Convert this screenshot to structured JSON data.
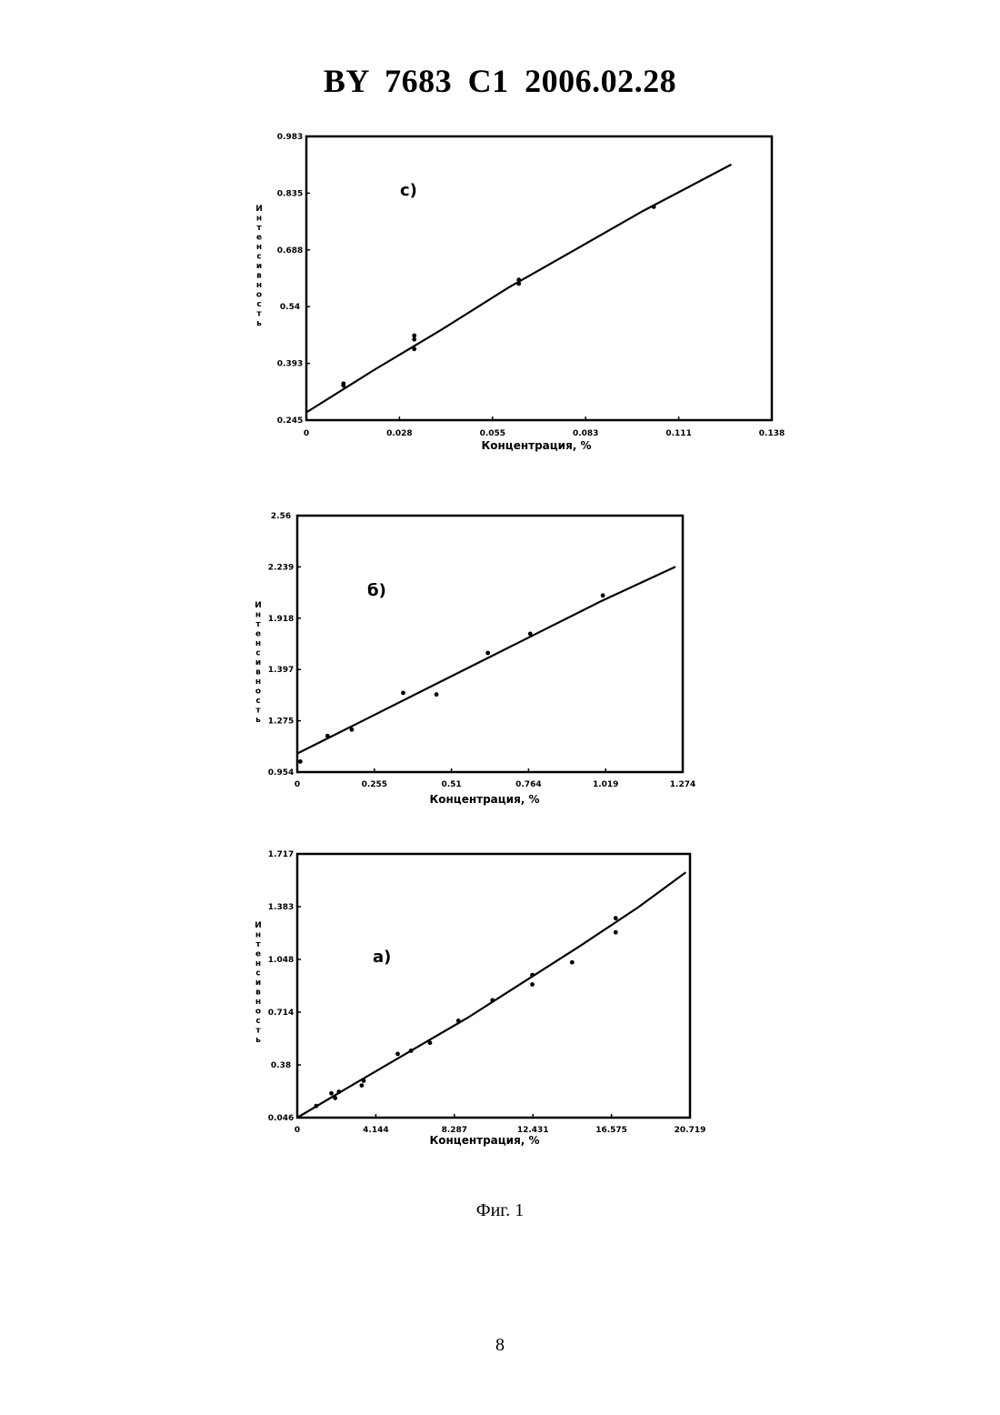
{
  "header": {
    "title": "BY 7683 C1 2006.02.28"
  },
  "caption": "Фиг. 1",
  "page_number": "8",
  "chart_data": [
    {
      "type": "scatter",
      "panel_label": "с)",
      "xlabel": "Концентрация, %",
      "ylabel": "Интенсивность",
      "x_ticks": [
        "0",
        "0.028",
        "0.055",
        "0.083",
        "0.111",
        "0.138"
      ],
      "y_ticks": [
        "0.245",
        "0.393",
        "0.54",
        "0.688",
        "0.835",
        "0.983"
      ],
      "xlim": [
        0,
        0.138
      ],
      "ylim": [
        0.245,
        0.983
      ],
      "points": [
        [
          0.011,
          0.335
        ],
        [
          0.011,
          0.34
        ],
        [
          0.032,
          0.455
        ],
        [
          0.032,
          0.465
        ],
        [
          0.032,
          0.43
        ],
        [
          0.063,
          0.6
        ],
        [
          0.063,
          0.61
        ],
        [
          0.103,
          0.8
        ]
      ],
      "fit_line": [
        [
          0,
          0.265
        ],
        [
          0.02,
          0.375
        ],
        [
          0.04,
          0.48
        ],
        [
          0.06,
          0.59
        ],
        [
          0.08,
          0.69
        ],
        [
          0.1,
          0.79
        ],
        [
          0.126,
          0.91
        ]
      ]
    },
    {
      "type": "scatter",
      "panel_label": "б)",
      "xlabel": "Концентрация, %",
      "ylabel": "Интенсивность",
      "x_ticks": [
        "0",
        "0.255",
        "0.51",
        "0.764",
        "1.019",
        "1.274"
      ],
      "y_ticks": [
        "0.954",
        "1.275",
        "1.397",
        "1.918",
        "2.239",
        "2.56"
      ],
      "xlim": [
        0,
        1.274
      ],
      "ylim": [
        0.954,
        2.56
      ],
      "points": [
        [
          0.01,
          1.02
        ],
        [
          0.1,
          1.18
        ],
        [
          0.18,
          1.22
        ],
        [
          0.35,
          1.45
        ],
        [
          0.46,
          1.44
        ],
        [
          0.63,
          1.7
        ],
        [
          0.77,
          1.82
        ],
        [
          1.01,
          2.06
        ]
      ],
      "fit_line": [
        [
          0,
          1.07
        ],
        [
          0.2,
          1.26
        ],
        [
          0.4,
          1.45
        ],
        [
          0.6,
          1.64
        ],
        [
          0.8,
          1.83
        ],
        [
          1.0,
          2.02
        ],
        [
          1.25,
          2.24
        ]
      ]
    },
    {
      "type": "scatter",
      "panel_label": "а)",
      "xlabel": "Концентрация, %",
      "ylabel": "Интенсивность",
      "x_ticks": [
        "0",
        "4.144",
        "8.287",
        "12.431",
        "16.575",
        "20.719"
      ],
      "y_ticks": [
        "0.046",
        "0.38",
        "0.714",
        "1.048",
        "1.383",
        "1.717"
      ],
      "xlim": [
        0,
        20.719
      ],
      "ylim": [
        0.046,
        1.717
      ],
      "points": [
        [
          1.0,
          0.12
        ],
        [
          1.8,
          0.2
        ],
        [
          2.0,
          0.17
        ],
        [
          2.2,
          0.21
        ],
        [
          3.4,
          0.25
        ],
        [
          3.5,
          0.28
        ],
        [
          5.3,
          0.45
        ],
        [
          6.0,
          0.47
        ],
        [
          7.0,
          0.52
        ],
        [
          8.5,
          0.66
        ],
        [
          10.3,
          0.79
        ],
        [
          12.4,
          0.95
        ],
        [
          12.4,
          0.89
        ],
        [
          14.5,
          1.03
        ],
        [
          16.8,
          1.22
        ],
        [
          16.8,
          1.31
        ]
      ],
      "fit_line": [
        [
          0,
          0.046
        ],
        [
          3,
          0.26
        ],
        [
          6,
          0.47
        ],
        [
          9,
          0.68
        ],
        [
          12,
          0.91
        ],
        [
          15,
          1.14
        ],
        [
          18,
          1.38
        ],
        [
          20.5,
          1.6
        ]
      ]
    }
  ]
}
